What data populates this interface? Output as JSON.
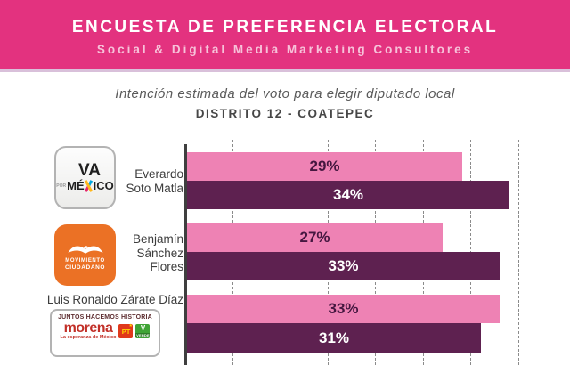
{
  "banner": {
    "title": "ENCUESTA DE PREFERENCIA ELECTORAL",
    "subtitle": "Social & Digital Media Marketing Consultores",
    "bg_color": "#e3327f"
  },
  "header": {
    "intent_line": "Intención estimada del voto para elegir diputado local",
    "district_line": "DISTRITO 12 - COATEPEC"
  },
  "chart_data": {
    "type": "bar",
    "orientation": "horizontal",
    "title": "ENCUESTA DE PREFERENCIA ELECTORAL",
    "subtitle": "Intención estimada del voto para elegir diputado local",
    "district": "DISTRITO 12 - COATEPEC",
    "categories": [
      "Everardo Soto Matla",
      "Benjamín Sánchez Flores",
      "Luis Ronaldo Zárate Díaz"
    ],
    "series": [
      {
        "name": "serie-rosa",
        "color": "#ee82b4",
        "values": [
          29,
          27,
          33
        ]
      },
      {
        "name": "serie-guinda",
        "color": "#5e2150",
        "values": [
          34,
          33,
          31
        ]
      }
    ],
    "value_labels": [
      [
        "29%",
        "34%"
      ],
      [
        "27%",
        "33%"
      ],
      [
        "33%",
        "31%"
      ]
    ],
    "xlim": [
      0,
      35
    ],
    "gridline_step": 5,
    "grid": "vertical-dashed",
    "legend": "none"
  },
  "rows": [
    {
      "name_line1": "Everardo",
      "name_line2": "Soto Matla",
      "bar1_label": "29%",
      "bar2_label": "34%"
    },
    {
      "name_line1": "Benjamín",
      "name_line2": "Sánchez",
      "name_line3": "Flores",
      "bar1_label": "27%",
      "bar2_label": "33%"
    },
    {
      "name_line1": "Luis Ronaldo Zárate Díaz",
      "bar1_label": "33%",
      "bar2_label": "31%"
    }
  ],
  "logos": {
    "va_por_mexico": {
      "va": "VA",
      "por": "POR",
      "mexico_pre": "MÉ",
      "mexico_post": "ICO"
    },
    "movimiento_ciudadano": {
      "line1": "MOVIMIENTO",
      "line2": "CIUDADANO"
    },
    "coalition": {
      "header": "JUNTOS HACEMOS HISTORIA",
      "morena": "morena",
      "tagline": "La esperanza de México",
      "pt": "PT",
      "pt_star": "★",
      "verde": "VERDE"
    }
  },
  "colors": {
    "bar_pink": "#ee82b4",
    "bar_purple": "#5e2150",
    "banner_pink": "#e3327f",
    "mc_orange": "#eb7125",
    "morena_red": "#c23028",
    "pt_red": "#e0391b",
    "verde_green": "#3fa435"
  }
}
